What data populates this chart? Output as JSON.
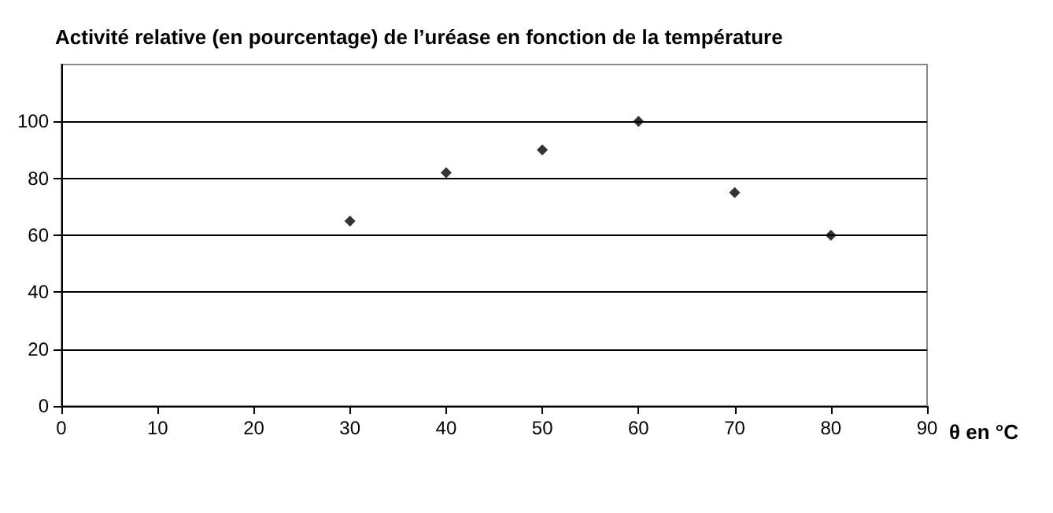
{
  "chart_data": {
    "type": "scatter",
    "title": "Activité relative (en pourcentage) de l’uréase en fonction de la température",
    "xlabel": "θ en °C",
    "x": [
      30,
      40,
      50,
      60,
      70,
      80
    ],
    "values": [
      65,
      82,
      90,
      100,
      75,
      60
    ],
    "color": "#000000",
    "marker": "diamond",
    "xlim": [
      0,
      90
    ],
    "xticks": [
      0,
      10,
      20,
      30,
      40,
      50,
      60,
      70,
      80,
      90
    ],
    "ylim": [
      0,
      120
    ],
    "yticks": [
      0,
      20,
      40,
      60,
      80,
      100
    ],
    "grid": "y"
  }
}
